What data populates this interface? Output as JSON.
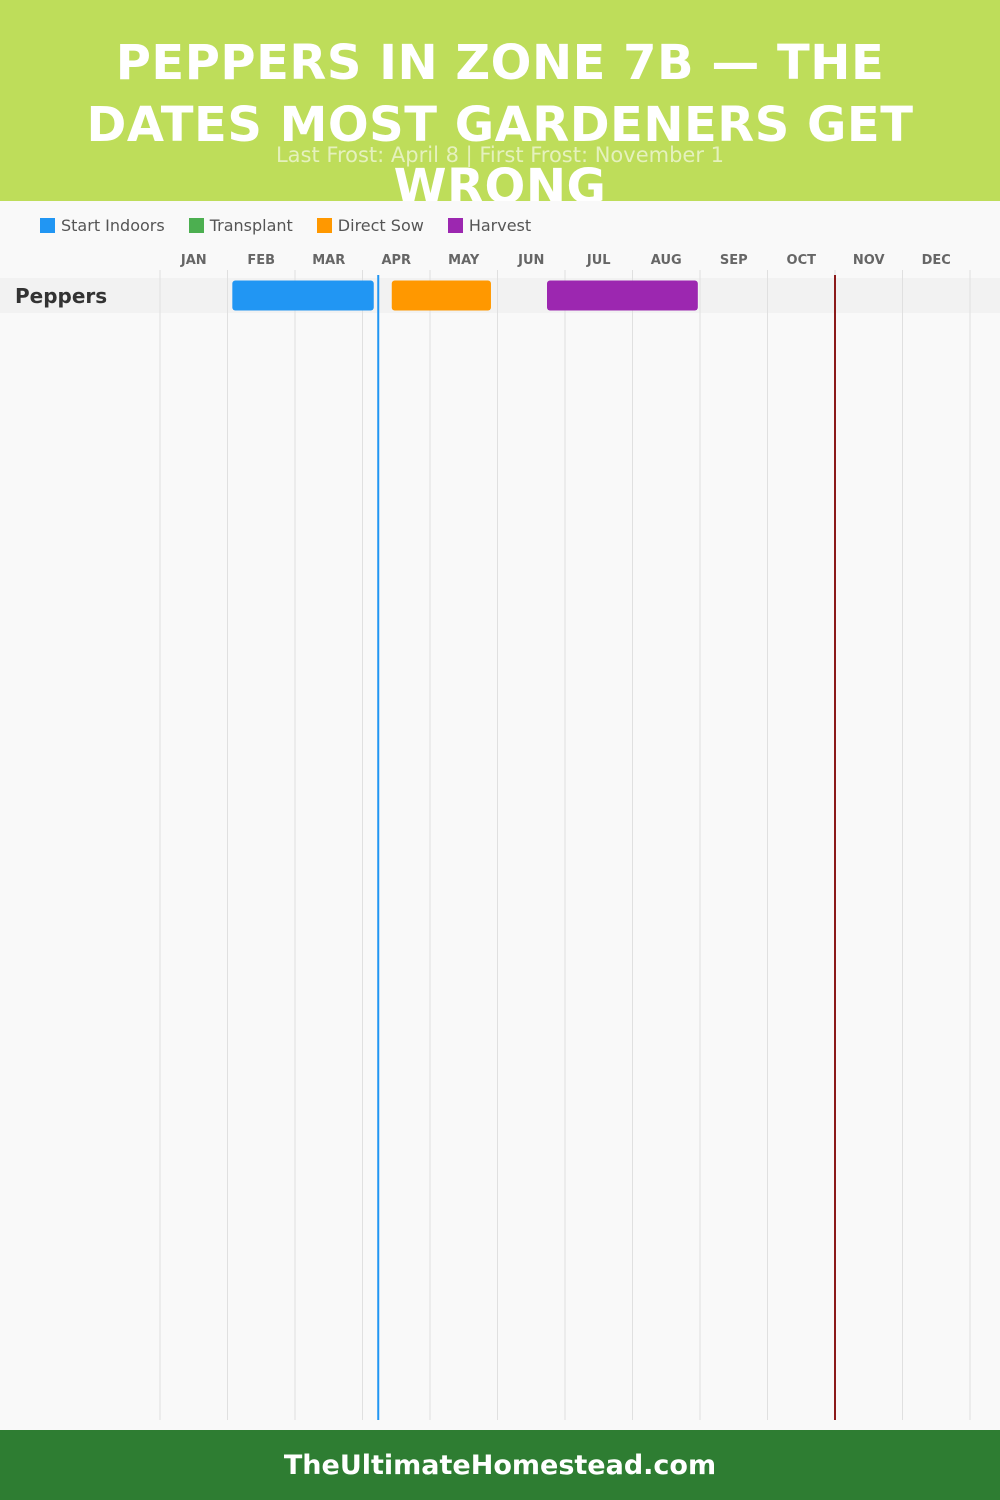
{
  "header": {
    "title": "PEPPERS IN ZONE 7B — THE DATES MOST GARDENERS GET WRONG",
    "subtitle": "Last Frost: April 8 | First Frost: November 1"
  },
  "legend": [
    {
      "label": "Start Indoors",
      "color": "#2196f3"
    },
    {
      "label": "Transplant",
      "color": "#4caf50"
    },
    {
      "label": "Direct Sow",
      "color": "#ff9800"
    },
    {
      "label": "Harvest",
      "color": "#9c27b0"
    }
  ],
  "chart_data": {
    "type": "gantt",
    "x_categories": [
      "JAN",
      "FEB",
      "MAR",
      "APR",
      "MAY",
      "JUN",
      "JUL",
      "AUG",
      "SEP",
      "OCT",
      "NOV",
      "DEC"
    ],
    "rows": [
      {
        "label": "Peppers",
        "bars": [
          {
            "phase": "Start Indoors",
            "color": "#2196f3",
            "start": "Feb 3",
            "end": "Apr 6"
          },
          {
            "phase": "Direct Sow",
            "color": "#ff9800",
            "start": "Apr 14",
            "end": "May 29"
          },
          {
            "phase": "Harvest",
            "color": "#9c27b0",
            "start": "Jun 23",
            "end": "Aug 31"
          }
        ]
      }
    ],
    "markers": [
      {
        "name": "Last Frost",
        "date": "Apr 8",
        "color": "#2196f3"
      },
      {
        "name": "First Frost",
        "date": "Nov 1",
        "color": "#8b1a1a"
      }
    ],
    "grid": true
  },
  "footer": {
    "text": "TheUltimateHomestead.com"
  }
}
